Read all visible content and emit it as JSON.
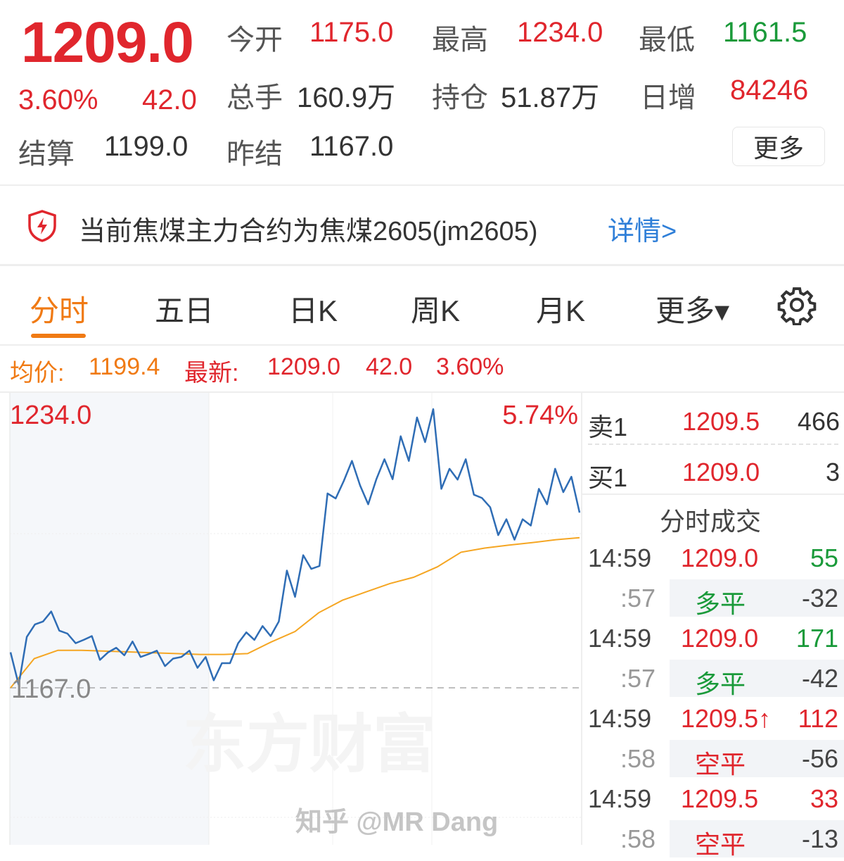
{
  "quote": {
    "price": "1209.0",
    "change_pct": "3.60%",
    "change": "42.0",
    "settle_label": "结算",
    "settle": "1199.0",
    "prev_settle_label": "昨结",
    "prev_settle": "1167.0",
    "open_label": "今开",
    "open": "1175.0",
    "high_label": "最高",
    "high": "1234.0",
    "low_label": "最低",
    "low": "1161.5",
    "volume_label": "总手",
    "volume": "160.9万",
    "oi_label": "持仓",
    "oi": "51.87万",
    "oi_chg_label": "日增",
    "oi_chg": "84246",
    "more_label": "更多"
  },
  "notice": {
    "icon": "shield-lightning-icon",
    "text": "当前焦煤主力合约为焦煤2605(jm2605)",
    "link": "详情>"
  },
  "tabs": [
    {
      "label": "分时",
      "active": true
    },
    {
      "label": "五日"
    },
    {
      "label": "日K"
    },
    {
      "label": "周K"
    },
    {
      "label": "月K"
    },
    {
      "label": "更多▾"
    }
  ],
  "info": {
    "avg_label": "均价:",
    "avg": "1199.4",
    "last_label": "最新:",
    "last": "1209.0",
    "change": "42.0",
    "change_pct": "3.60%"
  },
  "colors": {
    "up": "#e0262d",
    "down": "#1a9a3a",
    "accent": "#f07a14",
    "price_line": "#2f6db5",
    "avg_line": "#f5a623"
  },
  "chart_data": {
    "type": "line",
    "y_top_label": "1234.0",
    "y_base_label": "1167.0",
    "pct_top_label": "5.74%",
    "ylim": [
      1122,
      1236
    ],
    "base": 1167.0,
    "grid": true,
    "watermark": "东方财富",
    "series": [
      {
        "values": [
          1175.5,
          1167.7,
          1179.2,
          1182.2,
          1182.9,
          1185.3,
          1180.7,
          1180,
          1177.7,
          1178.5,
          1179.4,
          1173.7,
          1175.5,
          1176.6,
          1174.8,
          1178.1,
          1174.4,
          1175.1,
          1175.9,
          1172.2,
          1174,
          1174.4,
          1175.9,
          1171.8,
          1174.4,
          1168.8,
          1172.9,
          1172.9,
          1177.7,
          1180.3,
          1178.5,
          1181.8,
          1179.4,
          1182.9,
          1195.1,
          1188.8,
          1198.8,
          1195.5,
          1196.2,
          1213.6,
          1212.4,
          1216.6,
          1221.4,
          1215.5,
          1211,
          1217,
          1221.8,
          1217,
          1227.3,
          1221.4,
          1231.8,
          1225.9,
          1233.8,
          1214.7,
          1219.5,
          1216.9,
          1221.8,
          1213.3,
          1212.5,
          1210.3,
          1203.6,
          1207.4,
          1202.5,
          1207.4,
          1205.9,
          1214.7,
          1211,
          1219.5,
          1213.9,
          1217.6,
          1209.0
        ]
      },
      {
        "values": [
          1167,
          1174,
          1176,
          1176,
          1175.8,
          1175.6,
          1175.4,
          1175.2,
          1175,
          1175,
          1175.2,
          1178,
          1180.5,
          1185,
          1188,
          1190,
          1192,
          1193.5,
          1196,
          1199.5,
          1200.5,
          1201.2,
          1201.8,
          1202.5,
          1203
        ]
      }
    ]
  },
  "trades": {
    "ask_label": "卖1",
    "ask_price": "1209.5",
    "ask_vol": "466",
    "bid_label": "买1",
    "bid_price": "1209.0",
    "bid_vol": "3",
    "title": "分时成交",
    "rows": [
      {
        "time": "14:59",
        "price": "1209.0",
        "vol": "55",
        "vc": "green"
      },
      {
        "time": ":57",
        "price": "多平",
        "vol": "-32",
        "pc": "green",
        "sub": true
      },
      {
        "time": "14:59",
        "price": "1209.0",
        "vol": "171",
        "vc": "green"
      },
      {
        "time": ":57",
        "price": "多平",
        "vol": "-42",
        "pc": "green",
        "sub": true
      },
      {
        "time": "14:59",
        "price": "1209.5↑",
        "vol": "112",
        "vc": "red"
      },
      {
        "time": ":58",
        "price": "空平",
        "vol": "-56",
        "pc": "red",
        "sub": true
      },
      {
        "time": "14:59",
        "price": "1209.5",
        "vol": "33",
        "vc": "red"
      },
      {
        "time": ":58",
        "price": "空平",
        "vol": "-13",
        "pc": "red",
        "sub": true
      }
    ]
  },
  "watermark": "知乎 @MR Dang"
}
